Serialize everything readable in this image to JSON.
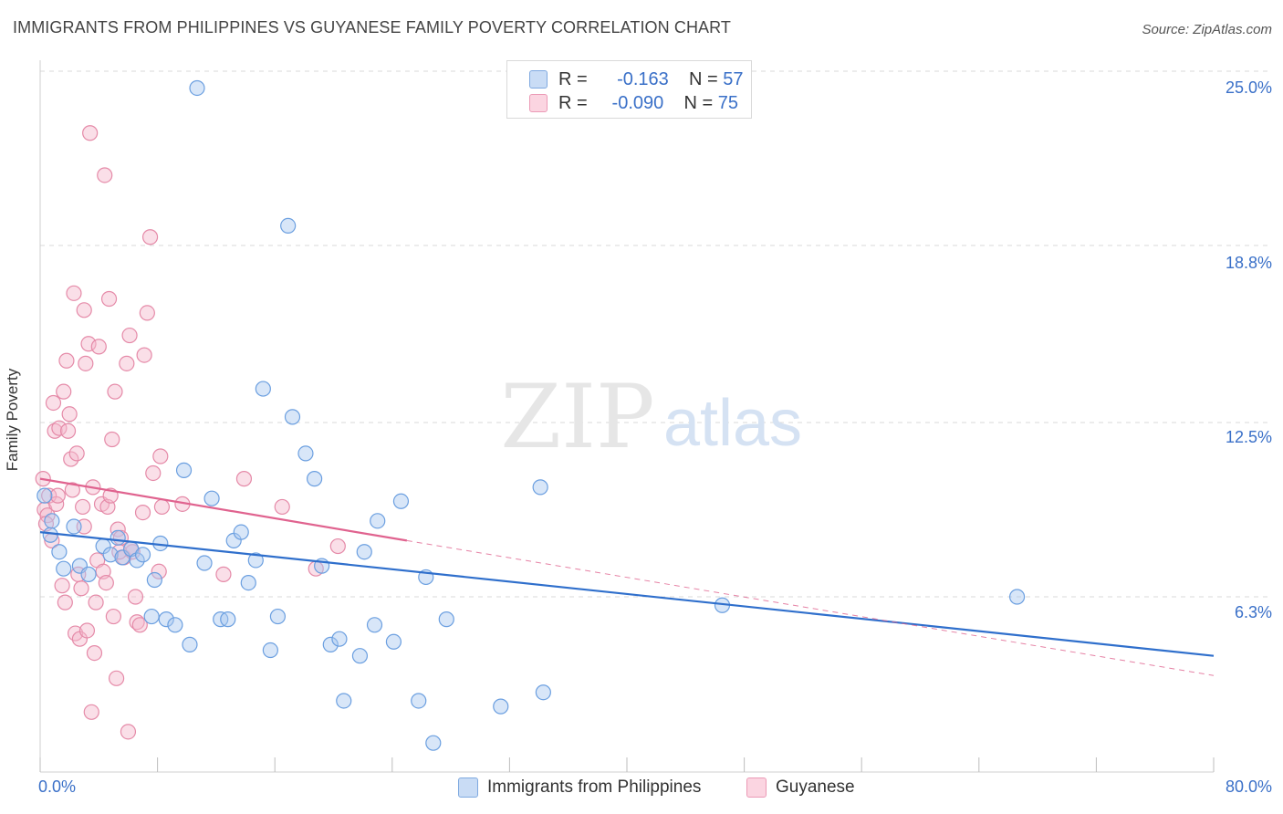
{
  "title": "IMMIGRANTS FROM PHILIPPINES VS GUYANESE FAMILY POVERTY CORRELATION CHART",
  "source": "Source: ZipAtlas.com",
  "watermark": {
    "zip": "ZIP",
    "atlas": "atlas"
  },
  "legend_top": {
    "rows": [
      {
        "r_label": "R =",
        "r_value": "-0.163",
        "n_label": "N =",
        "n_value": "57",
        "color": "#a8c7f0"
      },
      {
        "r_label": "R =",
        "r_value": "-0.090",
        "n_label": "N =",
        "n_value": "75",
        "color": "#f5b8cb"
      }
    ]
  },
  "colors": {
    "blue_fill": "#a8c7f0",
    "blue_stroke": "#6b9fe0",
    "blue_line": "#2f6fcc",
    "pink_fill": "#f5b8cb",
    "pink_stroke": "#e58aa8",
    "pink_line": "#e0638f",
    "grid": "#d8d8d8",
    "axis_text": "#3a70c8"
  },
  "chart_data": {
    "type": "scatter",
    "title": "IMMIGRANTS FROM PHILIPPINES VS GUYANESE FAMILY POVERTY CORRELATION CHART",
    "xlabel": "",
    "ylabel": "Family Poverty",
    "xlim": [
      0,
      80
    ],
    "ylim": [
      0,
      26.2
    ],
    "x_tick_labels": [
      "0.0%",
      "80.0%"
    ],
    "y_ticks": [
      6.3,
      12.5,
      18.8,
      25.0
    ],
    "y_tick_labels": [
      "6.3%",
      "12.5%",
      "18.8%",
      "25.0%"
    ],
    "grid": true,
    "legend_position": "bottom",
    "series": [
      {
        "name": "Immigrants from Philippines",
        "color": "#a8c7f0",
        "trend": {
          "x": [
            0,
            80
          ],
          "y": [
            8.6,
            4.2
          ],
          "dashed": false
        },
        "points": [
          [
            0.3,
            9.9
          ],
          [
            0.7,
            8.5
          ],
          [
            1.3,
            7.9
          ],
          [
            1.6,
            7.3
          ],
          [
            2.3,
            8.8
          ],
          [
            2.7,
            7.4
          ],
          [
            3.3,
            7.1
          ],
          [
            4.3,
            8.1
          ],
          [
            4.8,
            7.8
          ],
          [
            5.3,
            8.4
          ],
          [
            5.6,
            7.7
          ],
          [
            6.2,
            8.0
          ],
          [
            6.6,
            7.6
          ],
          [
            7.0,
            7.8
          ],
          [
            7.6,
            5.6
          ],
          [
            7.8,
            6.9
          ],
          [
            8.2,
            8.2
          ],
          [
            8.6,
            5.5
          ],
          [
            9.2,
            5.3
          ],
          [
            9.8,
            10.8
          ],
          [
            10.2,
            4.6
          ],
          [
            10.7,
            24.4
          ],
          [
            11.2,
            7.5
          ],
          [
            11.7,
            9.8
          ],
          [
            12.3,
            5.5
          ],
          [
            12.8,
            5.5
          ],
          [
            13.2,
            8.3
          ],
          [
            13.7,
            8.6
          ],
          [
            14.2,
            6.8
          ],
          [
            14.7,
            7.6
          ],
          [
            15.2,
            13.7
          ],
          [
            15.7,
            4.4
          ],
          [
            16.2,
            5.6
          ],
          [
            16.9,
            19.5
          ],
          [
            17.2,
            12.7
          ],
          [
            18.1,
            11.4
          ],
          [
            18.7,
            10.5
          ],
          [
            19.2,
            7.4
          ],
          [
            19.8,
            4.6
          ],
          [
            20.4,
            4.8
          ],
          [
            20.7,
            2.6
          ],
          [
            21.8,
            4.2
          ],
          [
            22.1,
            7.9
          ],
          [
            22.8,
            5.3
          ],
          [
            23.0,
            9.0
          ],
          [
            24.1,
            4.7
          ],
          [
            24.6,
            9.7
          ],
          [
            25.8,
            2.6
          ],
          [
            26.3,
            7.0
          ],
          [
            26.8,
            1.1
          ],
          [
            27.7,
            5.5
          ],
          [
            31.4,
            2.4
          ],
          [
            34.1,
            10.2
          ],
          [
            34.3,
            2.9
          ],
          [
            46.5,
            6.0
          ],
          [
            66.6,
            6.3
          ],
          [
            0.8,
            9.0
          ]
        ]
      },
      {
        "name": "Guyanese",
        "color": "#f5b8cb",
        "trend": {
          "x": [
            0,
            25
          ],
          "y": [
            10.5,
            8.3
          ],
          "dashed": false,
          "extension": {
            "x": [
              25,
              80
            ],
            "y": [
              8.3,
              3.5
            ]
          }
        },
        "points": [
          [
            0.2,
            10.5
          ],
          [
            0.3,
            9.4
          ],
          [
            0.5,
            9.2
          ],
          [
            0.6,
            9.9
          ],
          [
            0.8,
            8.3
          ],
          [
            0.9,
            13.2
          ],
          [
            1.0,
            12.2
          ],
          [
            1.1,
            9.6
          ],
          [
            1.3,
            12.3
          ],
          [
            1.5,
            6.7
          ],
          [
            1.6,
            13.6
          ],
          [
            1.7,
            6.1
          ],
          [
            1.8,
            14.7
          ],
          [
            1.9,
            12.2
          ],
          [
            2.0,
            12.8
          ],
          [
            2.1,
            11.2
          ],
          [
            2.3,
            17.1
          ],
          [
            2.4,
            5.0
          ],
          [
            2.5,
            11.4
          ],
          [
            2.6,
            7.1
          ],
          [
            2.7,
            4.8
          ],
          [
            2.8,
            6.6
          ],
          [
            2.9,
            9.5
          ],
          [
            3.0,
            16.5
          ],
          [
            3.1,
            14.6
          ],
          [
            3.2,
            5.1
          ],
          [
            3.3,
            15.3
          ],
          [
            3.4,
            22.8
          ],
          [
            3.5,
            2.2
          ],
          [
            3.6,
            10.2
          ],
          [
            3.7,
            4.3
          ],
          [
            3.8,
            6.1
          ],
          [
            3.9,
            7.6
          ],
          [
            4.0,
            15.2
          ],
          [
            4.2,
            9.6
          ],
          [
            4.3,
            7.2
          ],
          [
            4.4,
            21.3
          ],
          [
            4.5,
            6.8
          ],
          [
            4.6,
            9.5
          ],
          [
            4.7,
            16.9
          ],
          [
            4.8,
            9.9
          ],
          [
            4.9,
            11.9
          ],
          [
            5.0,
            5.6
          ],
          [
            5.1,
            13.6
          ],
          [
            5.2,
            3.4
          ],
          [
            5.3,
            8.7
          ],
          [
            5.5,
            8.4
          ],
          [
            5.7,
            7.7
          ],
          [
            5.9,
            14.6
          ],
          [
            6.0,
            1.5
          ],
          [
            6.1,
            15.6
          ],
          [
            6.3,
            7.9
          ],
          [
            6.5,
            6.3
          ],
          [
            6.6,
            5.4
          ],
          [
            6.8,
            5.3
          ],
          [
            7.0,
            9.3
          ],
          [
            7.1,
            14.9
          ],
          [
            7.3,
            16.4
          ],
          [
            7.5,
            19.1
          ],
          [
            7.7,
            10.7
          ],
          [
            8.1,
            7.2
          ],
          [
            8.2,
            11.3
          ],
          [
            8.3,
            9.5
          ],
          [
            9.7,
            9.6
          ],
          [
            12.5,
            7.1
          ],
          [
            13.9,
            10.5
          ],
          [
            16.5,
            9.5
          ],
          [
            18.8,
            7.3
          ],
          [
            20.3,
            8.1
          ],
          [
            1.2,
            9.9
          ],
          [
            0.4,
            8.9
          ],
          [
            2.2,
            10.1
          ],
          [
            3.0,
            8.8
          ],
          [
            5.4,
            7.9
          ],
          [
            6.2,
            8.0
          ]
        ]
      }
    ]
  },
  "bottom_legend": [
    {
      "label": "Immigrants from Philippines"
    },
    {
      "label": "Guyanese"
    }
  ]
}
